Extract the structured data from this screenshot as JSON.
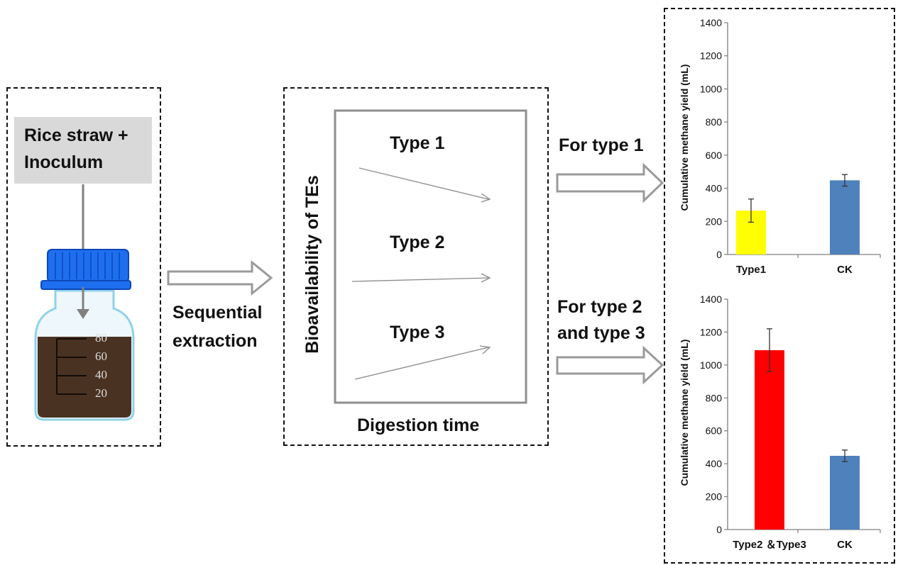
{
  "input": {
    "label_line1": "Rice straw +",
    "label_line2": "Inoculum",
    "bottle_ticks": [
      "80",
      "60",
      "40",
      "20"
    ]
  },
  "arrow1": {
    "label_line1": "Sequential",
    "label_line2": "extraction"
  },
  "bioavailability": {
    "y_axis_label": "Bioavailability of TEs",
    "x_axis_label": "Digestion time",
    "types": [
      "Type 1",
      "Type 2",
      "Type 3"
    ]
  },
  "arrow2": {
    "label": "For type 1"
  },
  "arrow3": {
    "label_line1": "For type 2",
    "label_line2": "and type 3"
  },
  "colors": {
    "bar_type1": "#ffff00",
    "bar_type2_3": "#ff0000",
    "bar_ck": "#4f81bd",
    "cap_blue": "#1e6ff0",
    "bottle_liquid": "#4a3222",
    "label_box": "#d9d9d9"
  },
  "chart_data": [
    {
      "type": "bar",
      "categories": [
        "Type1",
        "CK"
      ],
      "values": [
        265,
        448
      ],
      "errors": [
        70,
        35
      ],
      "ylabel": "Cumulative methane yield (mL)",
      "ylim": [
        0,
        1400
      ],
      "yticks": [
        "0",
        "200",
        "400",
        "600",
        "800",
        "1000",
        "1200",
        "1400"
      ],
      "grid": false
    },
    {
      "type": "bar",
      "categories": [
        "Type2 ＆Type3",
        "CK"
      ],
      "values": [
        1090,
        448
      ],
      "errors": [
        130,
        35
      ],
      "ylabel": "Cumulative methane yield (mL)",
      "ylim": [
        0,
        1400
      ],
      "yticks": [
        "0",
        "200",
        "400",
        "600",
        "800",
        "1000",
        "1200",
        "1400"
      ],
      "grid": false
    }
  ]
}
